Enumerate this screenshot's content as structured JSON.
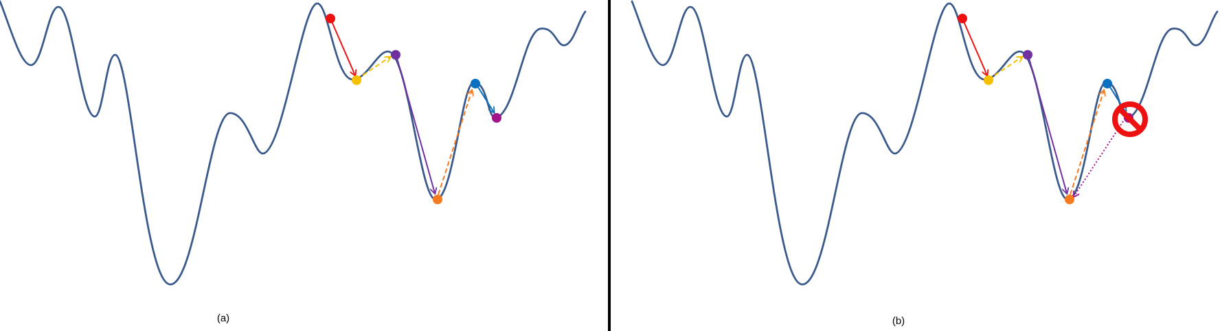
{
  "panels": [
    {
      "id": "a",
      "label": "(a)"
    },
    {
      "id": "b",
      "label": "(b)"
    }
  ],
  "colors": {
    "curve": "#3a5a8c",
    "divider": "#000000",
    "red": "#ee1111",
    "yellow": "#f5c000",
    "purple": "#7030a0",
    "orange": "#f57a20",
    "blue": "#0b6fc0",
    "magenta": "#a3128a",
    "prohibited": "#ee1111"
  },
  "icons": {
    "prohibited": "no-entry-icon"
  }
}
